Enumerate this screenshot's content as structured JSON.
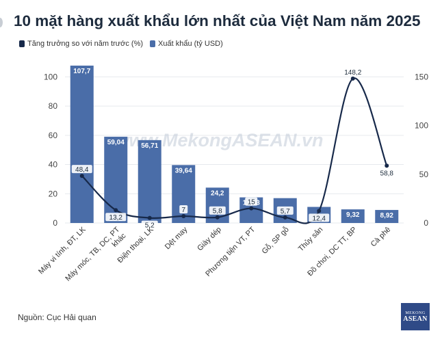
{
  "page": {
    "title": "10 mặt hàng xuất khẩu lớn nhất của Việt Nam năm 2025",
    "source": "Nguồn: Cục Hải quan",
    "watermark": "www.MekongASEAN.vn",
    "logo_top": "MEKONG",
    "logo_bottom": "ASEAN"
  },
  "chart_data": {
    "type": "bar",
    "categories": [
      "Máy vi tính, ĐT, LK",
      "Máy móc, TB, DC, PT khác",
      "Điện thoại, LK",
      "Dệt may",
      "Giày dép",
      "Phương tiện VT, PT",
      "Gỗ, SP gỗ",
      "Thủy sản",
      "Đồ chơi, DC TT, BP",
      "Cà phê"
    ],
    "category_lines": [
      [
        "Máy vi tính, ĐT, LK"
      ],
      [
        "Máy móc, TB, DC, PT",
        "khác"
      ],
      [
        "Điện thoại, LK"
      ],
      [
        "Dệt may"
      ],
      [
        "Giày dép"
      ],
      [
        "Phương tiện VT, PT"
      ],
      [
        "Gỗ, SP gỗ"
      ],
      [
        "Thủy sản"
      ],
      [
        "Đồ chơi, DC TT, BP"
      ],
      [
        "Cà phê"
      ]
    ],
    "series": [
      {
        "name": "Xuất khẩu (tỷ USD)",
        "type": "bar",
        "axis": "left",
        "color": "#4a6da8",
        "values": [
          107.7,
          59.04,
          56.71,
          39.64,
          24.2,
          17.53,
          17.0,
          11.0,
          9.32,
          8.92
        ],
        "labels": [
          "107,7",
          "59,04",
          "56,71",
          "39,64",
          "24,2",
          "17,53",
          "",
          "",
          "9,32",
          "8,92"
        ]
      },
      {
        "name": "Tăng trưởng so với năm trước (%)",
        "type": "line",
        "axis": "right",
        "color": "#17294a",
        "values": [
          48.4,
          13.2,
          5.2,
          7,
          5.8,
          15,
          5.7,
          12.4,
          148.2,
          58.8
        ],
        "labels": [
          "48,4",
          "13,2",
          "5,2",
          "7",
          "5,8",
          "15",
          "5,7",
          "12,4",
          "148,2",
          "58,8"
        ]
      }
    ],
    "left_axis": {
      "min": 0,
      "max": 110,
      "ticks": [
        "0",
        "20",
        "40",
        "60",
        "80",
        "100"
      ]
    },
    "right_axis": {
      "min": 0,
      "max": 165,
      "ticks": [
        "0",
        "50",
        "100",
        "150"
      ]
    },
    "grid": true,
    "legend_position": "top-left"
  }
}
